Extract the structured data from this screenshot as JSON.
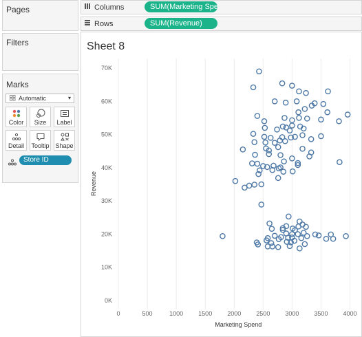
{
  "cards": {
    "pages": {
      "title": "Pages"
    },
    "filters": {
      "title": "Filters"
    },
    "marks": {
      "title": "Marks",
      "mark_type": "Automatic",
      "buttons": [
        "Color",
        "Size",
        "Label",
        "Detail",
        "Tooltip",
        "Shape"
      ],
      "detail_field": "Store ID"
    }
  },
  "shelves": {
    "columns": {
      "label": "Columns",
      "pill": "SUM(Marketing Spen.."
    },
    "rows": {
      "label": "Rows",
      "pill": "SUM(Revenue)"
    }
  },
  "sheet": {
    "title": "Sheet 8"
  },
  "colors": {
    "pill_green": "#1ab38a",
    "detail_pill": "#1f8db0",
    "mark": "#4e79a7"
  },
  "chart_data": {
    "type": "scatter",
    "xlabel": "Marketing Spend",
    "ylabel": "Revenue",
    "xlim": [
      0,
      4000
    ],
    "ylim": [
      0,
      70000
    ],
    "x_ticks": [
      0,
      500,
      1000,
      1500,
      2000,
      2500,
      3000,
      3500,
      4000
    ],
    "y_ticks": [
      0,
      10000,
      20000,
      30000,
      40000,
      50000,
      60000,
      70000
    ],
    "y_tick_labels": [
      "0K",
      "10K",
      "20K",
      "30K",
      "40K",
      "50K",
      "60K",
      "70K"
    ],
    "grid": "vertical",
    "marker": "open-circle",
    "points": [
      [
        2430,
        69000
      ],
      [
        2330,
        64200
      ],
      [
        2830,
        65400
      ],
      [
        3000,
        64700
      ],
      [
        3120,
        63000
      ],
      [
        3620,
        63000
      ],
      [
        3240,
        62500
      ],
      [
        2700,
        60000
      ],
      [
        2890,
        59600
      ],
      [
        3080,
        60000
      ],
      [
        3390,
        59400
      ],
      [
        3540,
        59200
      ],
      [
        3340,
        58700
      ],
      [
        3220,
        57700
      ],
      [
        3610,
        56700
      ],
      [
        3110,
        56700
      ],
      [
        3500,
        54500
      ],
      [
        2400,
        55600
      ],
      [
        3120,
        55000
      ],
      [
        2870,
        55000
      ],
      [
        3000,
        54300
      ],
      [
        2520,
        54000
      ],
      [
        3260,
        54800
      ],
      [
        3960,
        56000
      ],
      [
        3810,
        54000
      ],
      [
        3000,
        52700
      ],
      [
        2840,
        52400
      ],
      [
        2900,
        52100
      ],
      [
        3140,
        52400
      ],
      [
        2530,
        52000
      ],
      [
        2740,
        51500
      ],
      [
        3200,
        51800
      ],
      [
        2960,
        51200
      ],
      [
        2330,
        50200
      ],
      [
        2520,
        49300
      ],
      [
        2630,
        49000
      ],
      [
        2830,
        49200
      ],
      [
        2980,
        49100
      ],
      [
        3050,
        49300
      ],
      [
        3180,
        49800
      ],
      [
        3330,
        48600
      ],
      [
        3500,
        49500
      ],
      [
        2790,
        48200
      ],
      [
        2880,
        48000
      ],
      [
        2350,
        47700
      ],
      [
        2540,
        47600
      ],
      [
        2700,
        47500
      ],
      [
        2760,
        46200
      ],
      [
        2600,
        45200
      ],
      [
        2550,
        45800
      ],
      [
        3330,
        44600
      ],
      [
        3180,
        45700
      ],
      [
        2150,
        45500
      ],
      [
        2600,
        44100
      ],
      [
        2360,
        43900
      ],
      [
        2800,
        43800
      ],
      [
        3300,
        43400
      ],
      [
        3000,
        42800
      ],
      [
        2400,
        41200
      ],
      [
        2500,
        40500
      ],
      [
        3100,
        41400
      ],
      [
        3100,
        40800
      ],
      [
        3820,
        41700
      ],
      [
        2860,
        41900
      ],
      [
        2680,
        40600
      ],
      [
        2570,
        40200
      ],
      [
        2800,
        40100
      ],
      [
        2770,
        39800
      ],
      [
        2660,
        39300
      ],
      [
        2310,
        41300
      ],
      [
        2440,
        39200
      ],
      [
        2850,
        38800
      ],
      [
        3010,
        38900
      ],
      [
        2420,
        38100
      ],
      [
        2760,
        36900
      ],
      [
        2020,
        36000
      ],
      [
        2180,
        34000
      ],
      [
        2260,
        34600
      ],
      [
        2350,
        34900
      ],
      [
        2470,
        35000
      ],
      [
        2470,
        28900
      ],
      [
        2940,
        25300
      ],
      [
        1800,
        19400
      ],
      [
        2610,
        23200
      ],
      [
        2900,
        22400
      ],
      [
        2650,
        21600
      ],
      [
        2840,
        21300
      ],
      [
        3050,
        21200
      ],
      [
        3180,
        22900
      ],
      [
        3130,
        23800
      ],
      [
        3110,
        22300
      ],
      [
        2840,
        21800
      ],
      [
        3010,
        21700
      ],
      [
        3240,
        22200
      ],
      [
        3200,
        20400
      ],
      [
        3260,
        19400
      ],
      [
        2900,
        20200
      ],
      [
        3000,
        20000
      ],
      [
        2700,
        19500
      ],
      [
        3400,
        19900
      ],
      [
        3460,
        19600
      ],
      [
        2580,
        18800
      ],
      [
        2810,
        19100
      ],
      [
        2930,
        18900
      ],
      [
        3160,
        18800
      ],
      [
        3040,
        18000
      ],
      [
        2910,
        17700
      ],
      [
        2770,
        18500
      ],
      [
        2390,
        17500
      ],
      [
        2560,
        18100
      ],
      [
        2980,
        17500
      ],
      [
        3670,
        19900
      ],
      [
        3930,
        19400
      ],
      [
        3590,
        18600
      ],
      [
        3710,
        18600
      ],
      [
        2640,
        17300
      ],
      [
        2410,
        16900
      ],
      [
        2660,
        16300
      ],
      [
        2760,
        16100
      ],
      [
        2580,
        16300
      ],
      [
        3220,
        17000
      ],
      [
        3130,
        15700
      ],
      [
        2960,
        16400
      ],
      [
        3000,
        19000
      ],
      [
        3100,
        20000
      ]
    ]
  }
}
